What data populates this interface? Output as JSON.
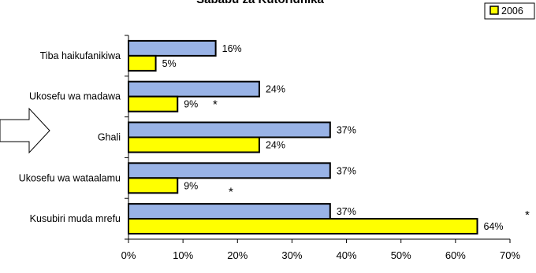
{
  "chart_data": {
    "type": "bar",
    "orientation": "horizontal",
    "title": "Sababu za Kutoridhika",
    "categories": [
      "Tiba haikufanikiwa",
      "Ukosefu wa madawa",
      "Ghali",
      "Ukosefu wa wataalamu",
      "Kusubiri muda mrefu"
    ],
    "series": [
      {
        "values": [
          16,
          24,
          37,
          37,
          37
        ],
        "labels": [
          "16%",
          "24%",
          "37%",
          "37%",
          "37%"
        ],
        "color": "#99b3e6"
      },
      {
        "name": "2006",
        "values": [
          5,
          9,
          24,
          9,
          64
        ],
        "labels": [
          "5%",
          "9%",
          "24%",
          "9%",
          "64%"
        ],
        "color": "#ffff00"
      }
    ],
    "significance_marks": [
      "",
      "*",
      "",
      "*",
      "*"
    ],
    "xlim": [
      0,
      70
    ],
    "xticks": [
      "0%",
      "10%",
      "20%",
      "30%",
      "40%",
      "50%",
      "60%",
      "70%"
    ],
    "legend_placement": "top-right",
    "grid": false
  }
}
